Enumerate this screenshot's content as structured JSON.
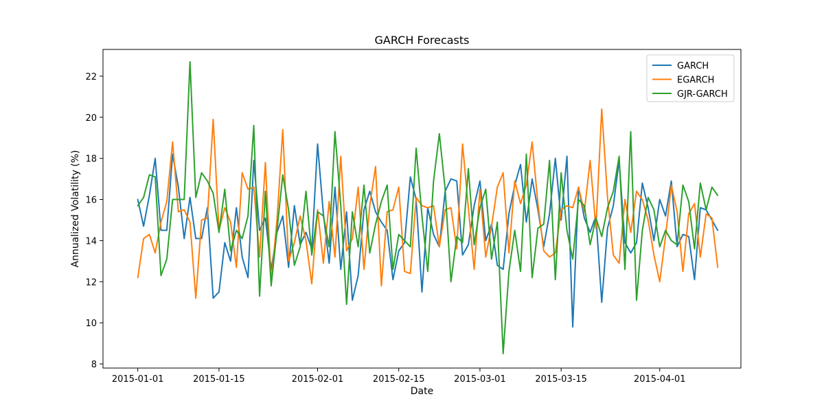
{
  "chart_data": {
    "type": "line",
    "title": "GARCH Forecasts",
    "xlabel": "Date",
    "ylabel": "Annualized Volatility (%)",
    "x_start": "2015-01-01",
    "x_end": "2015-04-10",
    "xlim": [
      "2014-12-26",
      "2015-04-15"
    ],
    "ylim": [
      7.8,
      23.3
    ],
    "x_ticks": [
      "2015-01-01",
      "2015-01-15",
      "2015-02-01",
      "2015-02-15",
      "2015-03-01",
      "2015-03-15",
      "2015-04-01"
    ],
    "y_ticks": [
      8,
      10,
      12,
      14,
      16,
      18,
      20,
      22
    ],
    "grid": false,
    "legend_position": "top-right",
    "series": [
      {
        "name": "GARCH",
        "color": "#1f77b4",
        "values": [
          16.0,
          14.7,
          16.2,
          18.0,
          14.5,
          14.5,
          18.2,
          16.6,
          14.1,
          16.1,
          14.1,
          14.1,
          15.6,
          11.2,
          11.5,
          13.9,
          13.0,
          15.6,
          13.2,
          12.2,
          17.9,
          14.5,
          15.1,
          12.6,
          14.4,
          15.2,
          12.7,
          15.7,
          13.8,
          14.4,
          13.6,
          18.7,
          15.3,
          12.9,
          16.6,
          12.6,
          15.4,
          11.1,
          12.3,
          15.5,
          16.4,
          15.4,
          14.9,
          14.5,
          12.1,
          13.5,
          13.9,
          17.1,
          16.0,
          11.5,
          15.6,
          14.3,
          13.7,
          16.4,
          17.0,
          16.9,
          13.3,
          13.8,
          15.7,
          16.9,
          14.0,
          14.8,
          12.8,
          12.6,
          15.3,
          16.7,
          17.7,
          14.9,
          17.0,
          15.5,
          13.7,
          15.3,
          18.0,
          15.0,
          18.1,
          9.8,
          16.6,
          15.1,
          14.4,
          15.2,
          11.0,
          14.6,
          15.7,
          17.9,
          13.9,
          13.4,
          13.9,
          16.8,
          15.6,
          14.0,
          16.0,
          15.2,
          16.9,
          13.7,
          14.3,
          14.2,
          12.1,
          15.6,
          15.5,
          15.0,
          14.5
        ]
      },
      {
        "name": "EGARCH",
        "color": "#ff7f0e",
        "values": [
          12.2,
          14.1,
          14.3,
          13.4,
          14.9,
          15.9,
          18.8,
          15.4,
          15.5,
          14.9,
          11.2,
          15.0,
          15.1,
          19.9,
          14.5,
          15.6,
          14.9,
          12.7,
          17.3,
          16.5,
          16.6,
          13.2,
          17.8,
          12.0,
          15.0,
          19.4,
          13.0,
          13.9,
          15.2,
          14.0,
          11.9,
          15.5,
          12.9,
          15.9,
          13.2,
          18.1,
          13.5,
          14.1,
          16.6,
          12.6,
          15.7,
          17.6,
          11.8,
          15.4,
          15.5,
          16.6,
          12.5,
          12.4,
          16.1,
          15.7,
          15.6,
          15.7,
          13.7,
          15.5,
          15.6,
          13.6,
          18.7,
          15.6,
          12.6,
          16.5,
          13.2,
          14.7,
          16.6,
          17.3,
          13.4,
          16.9,
          15.8,
          16.7,
          18.8,
          15.8,
          13.5,
          13.2,
          13.4,
          15.5,
          15.7,
          15.6,
          16.6,
          15.4,
          17.9,
          14.6,
          20.4,
          16.1,
          13.3,
          12.9,
          16.0,
          14.4,
          16.4,
          16.0,
          15.0,
          13.3,
          12.0,
          14.2,
          16.7,
          15.4,
          12.5,
          15.3,
          15.8,
          13.2,
          15.3,
          15.1,
          12.7
        ]
      },
      {
        "name": "GJR-GARCH",
        "color": "#2ca02c",
        "values": [
          15.7,
          16.1,
          17.2,
          17.1,
          12.3,
          13.1,
          16.0,
          16.0,
          16.0,
          22.7,
          16.1,
          17.3,
          16.9,
          16.3,
          14.4,
          16.5,
          13.5,
          14.5,
          14.1,
          15.2,
          19.6,
          11.3,
          16.4,
          11.8,
          14.5,
          17.2,
          15.5,
          12.8,
          13.7,
          16.4,
          13.3,
          15.4,
          15.2,
          13.7,
          19.3,
          15.7,
          10.9,
          15.4,
          13.7,
          16.7,
          13.4,
          14.8,
          15.9,
          16.7,
          12.6,
          14.3,
          14.0,
          13.7,
          18.5,
          15.2,
          12.5,
          16.9,
          19.2,
          16.5,
          12.0,
          14.2,
          13.9,
          17.5,
          13.8,
          15.6,
          16.5,
          13.1,
          14.9,
          8.5,
          12.5,
          14.5,
          12.5,
          18.2,
          12.2,
          14.6,
          14.8,
          17.9,
          12.1,
          17.3,
          14.5,
          13.1,
          16.0,
          15.7,
          13.8,
          15.1,
          14.2,
          15.6,
          16.4,
          18.1,
          12.6,
          19.3,
          11.1,
          14.5,
          16.1,
          15.5,
          13.7,
          14.5,
          14.0,
          13.8,
          16.7,
          15.9,
          13.6,
          16.8,
          15.5,
          16.6,
          16.2
        ]
      }
    ]
  }
}
